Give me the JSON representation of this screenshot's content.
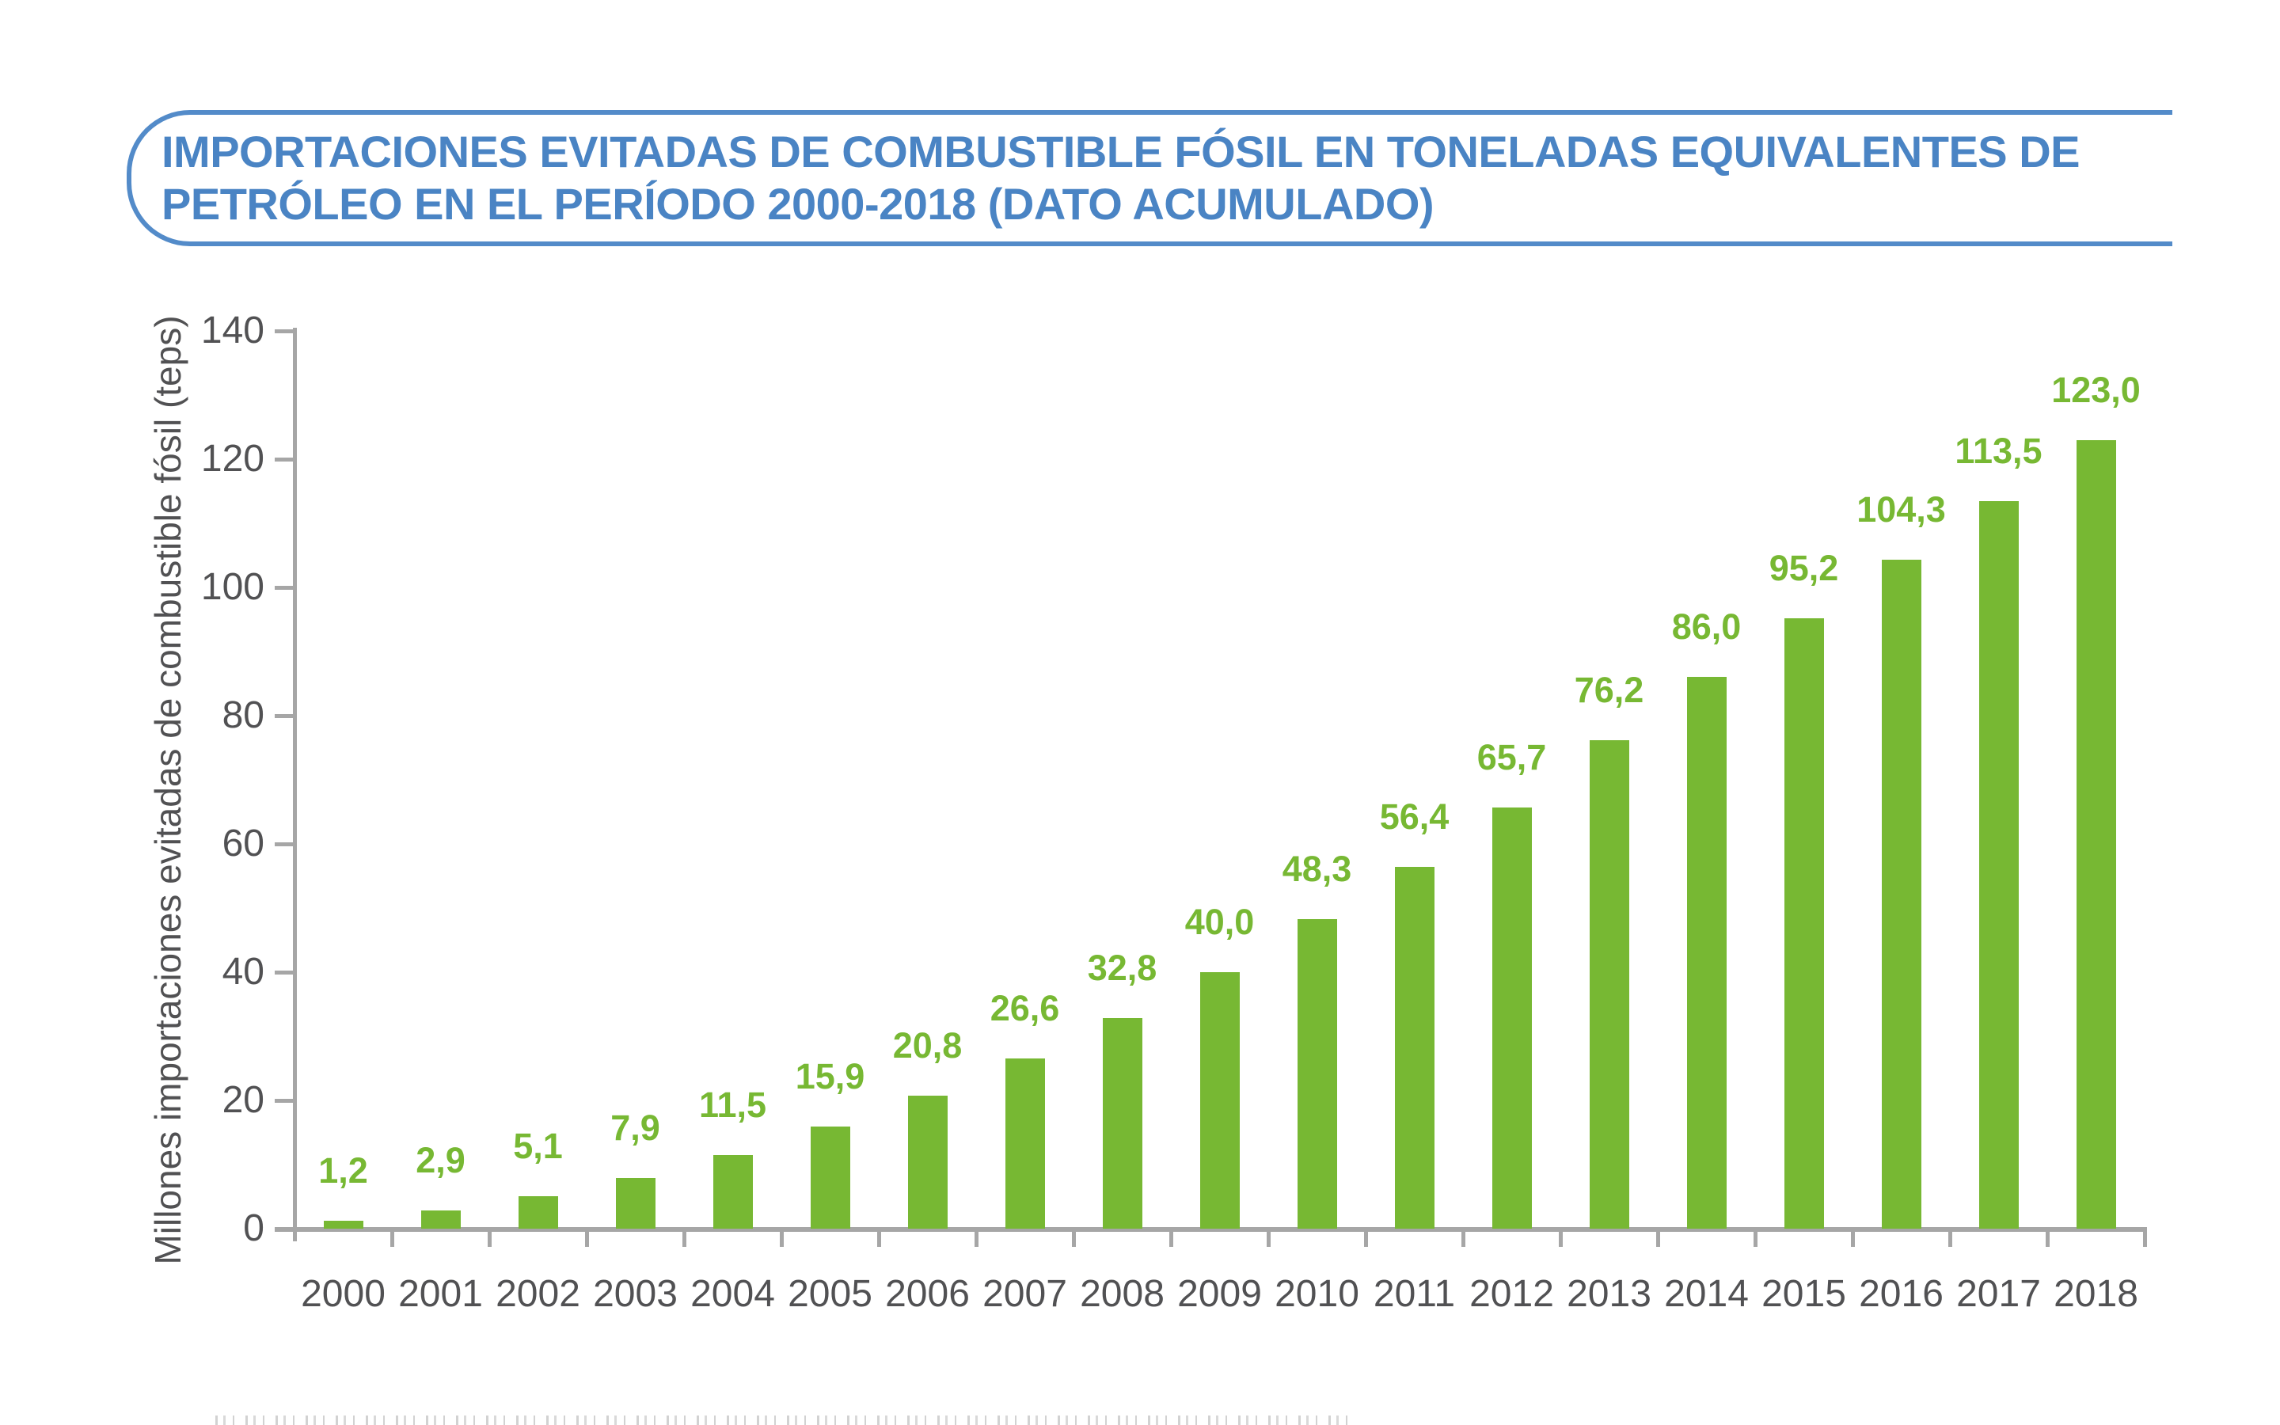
{
  "page": {
    "background": "#FFFFFF"
  },
  "title": {
    "line1": "IMPORTACIONES EVITADAS DE COMBUSTIBLE FÓSIL EN TONELADAS EQUIVALENTES DE",
    "line2": "PETRÓLEO EN EL PERÍODO 2000-2018 (DATO ACUMULADO)",
    "text_color": "#4A84C4",
    "border_color": "#538BC9"
  },
  "chart_data": {
    "type": "bar",
    "title": "Importaciones evitadas de combustible fósil en toneladas equivalentes de petróleo en el período 2000-2018 (dato acumulado)",
    "categories": [
      "2000",
      "2001",
      "2002",
      "2003",
      "2004",
      "2005",
      "2006",
      "2007",
      "2008",
      "2009",
      "2010",
      "2011",
      "2012",
      "2013",
      "2014",
      "2015",
      "2016",
      "2017",
      "2018"
    ],
    "values": [
      1.2,
      2.9,
      5.1,
      7.9,
      11.5,
      15.9,
      20.8,
      26.6,
      32.8,
      40.0,
      48.3,
      56.4,
      65.7,
      76.2,
      86.0,
      95.2,
      104.3,
      113.5,
      123.0
    ],
    "value_labels": [
      "1,2",
      "2,9",
      "5,1",
      "7,9",
      "11,5",
      "15,9",
      "20,8",
      "26,6",
      "32,8",
      "40,0",
      "48,3",
      "56,4",
      "65,7",
      "76,2",
      "86,0",
      "95,2",
      "104,3",
      "113,5",
      "123,0"
    ],
    "xlabel": "",
    "ylabel": "Millones importaciones evitadas de combustible fósil (teps)",
    "yticks": [
      0,
      20,
      40,
      60,
      80,
      100,
      120,
      140
    ],
    "ylim": [
      0,
      140
    ],
    "grid": false,
    "legend": null,
    "bar_color": "#77B833",
    "value_label_color": "#77B833",
    "axis_color": "#A6A6A6",
    "text_color": "#515153"
  }
}
